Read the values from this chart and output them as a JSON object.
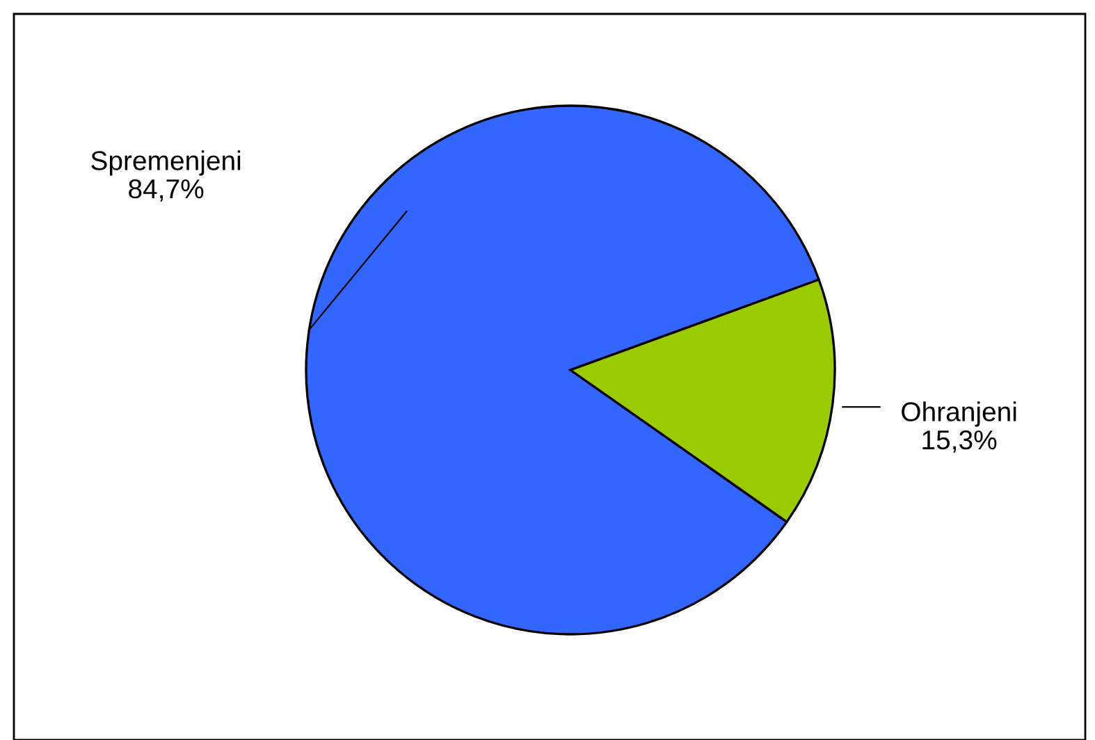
{
  "chart_data": {
    "type": "pie",
    "categories": [
      "Spremenjeni",
      "Ohranjeni"
    ],
    "values": [
      84.7,
      15.3
    ],
    "colors": [
      "#3366ff",
      "#99cc00"
    ],
    "value_labels": [
      "84,7%",
      "15,3%"
    ]
  }
}
